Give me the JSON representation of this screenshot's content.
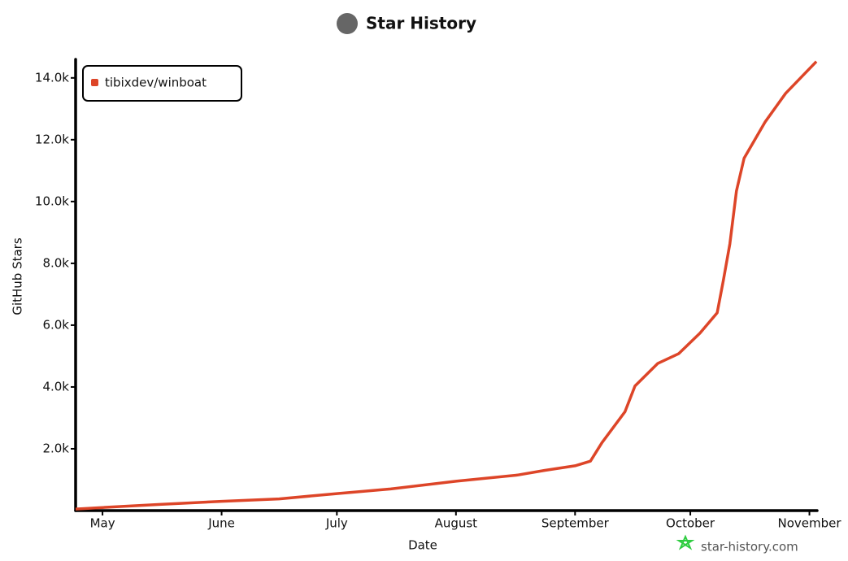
{
  "chart_data": {
    "type": "line",
    "title": "Star History",
    "x_label": "Date",
    "y_label": "GitHub Stars",
    "watermark": "star-history.com",
    "xlim": [
      -7,
      186
    ],
    "xticks": [
      {
        "value": 0,
        "label": "May"
      },
      {
        "value": 31,
        "label": "June"
      },
      {
        "value": 61,
        "label": "July"
      },
      {
        "value": 92,
        "label": "August"
      },
      {
        "value": 123,
        "label": "September"
      },
      {
        "value": 153,
        "label": "October"
      },
      {
        "value": 184,
        "label": "November"
      }
    ],
    "ylim": [
      0,
      14600
    ],
    "yticks": [
      {
        "value": 2000,
        "label": "2.0k"
      },
      {
        "value": 4000,
        "label": "4.0k"
      },
      {
        "value": 6000,
        "label": "6.0k"
      },
      {
        "value": 8000,
        "label": "8.0k"
      },
      {
        "value": 10000,
        "label": "10.0k"
      },
      {
        "value": 12000,
        "label": "12.0k"
      },
      {
        "value": 14000,
        "label": "14.0k"
      }
    ],
    "legend": "top-left",
    "series": [
      {
        "name": "tibixdev/winboat",
        "color": "#dd4528",
        "x": [
          -7,
          0,
          15,
          31,
          46,
          61,
          75,
          92,
          108,
          115,
          123,
          127,
          130,
          136,
          138.6,
          144.5,
          150,
          155.5,
          160,
          161.6,
          163.3,
          165,
          167,
          172.5,
          177.8,
          185.8
        ],
        "values": [
          50,
          100,
          200,
          300,
          380,
          550,
          700,
          950,
          1150,
          1300,
          1450,
          1600,
          2200,
          3200,
          4030,
          4760,
          5080,
          5740,
          6400,
          7450,
          8630,
          10340,
          11400,
          12580,
          13500,
          14530
        ]
      }
    ]
  }
}
